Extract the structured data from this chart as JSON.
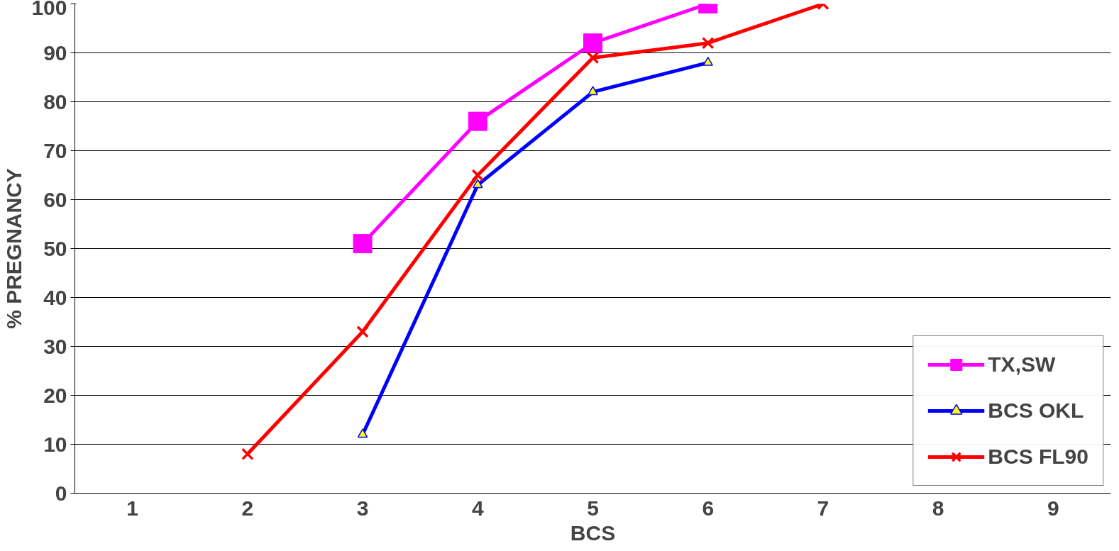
{
  "chart_data": {
    "type": "line",
    "xlabel": "BCS",
    "ylabel": "% PREGNANCY",
    "categories": [
      "1",
      "2",
      "3",
      "4",
      "5",
      "6",
      "7",
      "8",
      "9"
    ],
    "ylim": [
      0,
      100
    ],
    "yticks": [
      0,
      10,
      20,
      30,
      40,
      50,
      60,
      70,
      80,
      90,
      100
    ],
    "grid": "y",
    "legend": "bottom right",
    "line_style": "solid",
    "series": [
      {
        "name": "TX,SW",
        "color": "#ff00ff",
        "marker": "square",
        "values": [
          null,
          null,
          51,
          76,
          92,
          100,
          null,
          null,
          null
        ]
      },
      {
        "name": "BCS OKL",
        "color": "#0000ff",
        "marker": "triangle",
        "values": [
          null,
          null,
          12,
          63,
          82,
          88,
          null,
          null,
          null
        ]
      },
      {
        "name": "BCS FL90",
        "color": "#ff0000",
        "marker": "cross",
        "values": [
          null,
          8,
          33,
          65,
          89,
          92,
          100,
          null,
          null
        ]
      }
    ]
  }
}
